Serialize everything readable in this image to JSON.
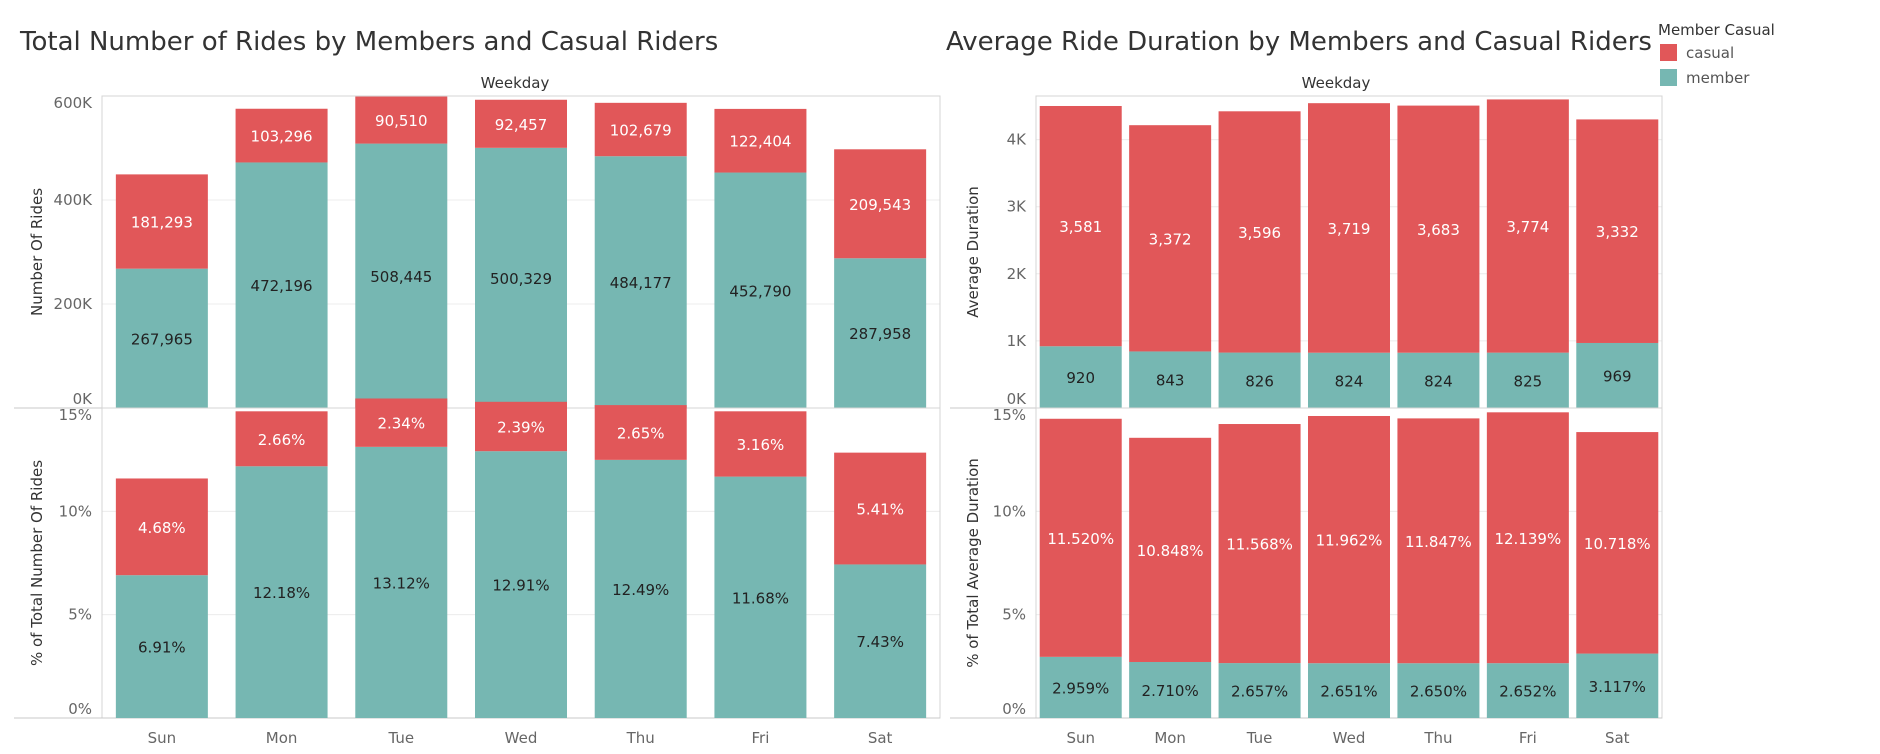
{
  "legend": {
    "title": "Member Casual",
    "items": [
      {
        "label": "casual",
        "color": "#e15759"
      },
      {
        "label": "member",
        "color": "#76b7b2"
      }
    ]
  },
  "chart_data": [
    {
      "id": "rides-count",
      "type": "bar",
      "stacked": true,
      "title": "Total Number of Rides by Members and Casual Riders",
      "header": "Weekday",
      "ylabel": "Number Of Rides",
      "ylim": [
        0,
        600000
      ],
      "yticks": [
        0,
        200000,
        400000,
        600000
      ],
      "ytick_labels": [
        "0K",
        "200K",
        "400K",
        "600K"
      ],
      "categories": [
        "Sun",
        "Mon",
        "Tue",
        "Wed",
        "Thu",
        "Fri",
        "Sat"
      ],
      "series": [
        {
          "name": "member",
          "values": [
            267965,
            472196,
            508445,
            500329,
            484177,
            452790,
            287958
          ],
          "labels": [
            "267,965",
            "472,196",
            "508,445",
            "500,329",
            "484,177",
            "452,790",
            "287,958"
          ]
        },
        {
          "name": "casual",
          "values": [
            181293,
            103296,
            90510,
            92457,
            102679,
            122404,
            209543
          ],
          "labels": [
            "181,293",
            "103,296",
            "90,510",
            "92,457",
            "102,679",
            "122,404",
            "209,543"
          ]
        }
      ]
    },
    {
      "id": "rides-pct",
      "type": "bar",
      "stacked": true,
      "ylabel": "% of Total Number Of Rides",
      "ylim": [
        0,
        15
      ],
      "yticks": [
        0,
        5,
        10,
        15
      ],
      "ytick_labels": [
        "0%",
        "5%",
        "10%",
        "15%"
      ],
      "categories": [
        "Sun",
        "Mon",
        "Tue",
        "Wed",
        "Thu",
        "Fri",
        "Sat"
      ],
      "series": [
        {
          "name": "member",
          "values": [
            6.91,
            12.18,
            13.12,
            12.91,
            12.49,
            11.68,
            7.43
          ],
          "labels": [
            "6.91%",
            "12.18%",
            "13.12%",
            "12.91%",
            "12.49%",
            "11.68%",
            "7.43%"
          ]
        },
        {
          "name": "casual",
          "values": [
            4.68,
            2.66,
            2.34,
            2.39,
            2.65,
            3.16,
            5.41
          ],
          "labels": [
            "4.68%",
            "2.66%",
            "2.34%",
            "2.39%",
            "2.65%",
            "3.16%",
            "5.41%"
          ]
        }
      ]
    },
    {
      "id": "duration-avg",
      "type": "bar",
      "stacked": true,
      "title": "Average Ride Duration by Members and Casual Riders",
      "header": "Weekday",
      "ylabel": "Average Duration",
      "ylim": [
        0,
        4650
      ],
      "yticks": [
        0,
        1000,
        2000,
        3000,
        4000
      ],
      "ytick_labels": [
        "0K",
        "1K",
        "2K",
        "3K",
        "4K"
      ],
      "categories": [
        "Sun",
        "Mon",
        "Tue",
        "Wed",
        "Thu",
        "Fri",
        "Sat"
      ],
      "series": [
        {
          "name": "member",
          "values": [
            920,
            843,
            826,
            824,
            824,
            825,
            969
          ],
          "labels": [
            "920",
            "843",
            "826",
            "824",
            "824",
            "825",
            "969"
          ]
        },
        {
          "name": "casual",
          "values": [
            3581,
            3372,
            3596,
            3719,
            3683,
            3774,
            3332
          ],
          "labels": [
            "3,581",
            "3,372",
            "3,596",
            "3,719",
            "3,683",
            "3,774",
            "3,332"
          ]
        }
      ]
    },
    {
      "id": "duration-pct",
      "type": "bar",
      "stacked": true,
      "ylabel": "% of Total Average Duration",
      "ylim": [
        0,
        15
      ],
      "yticks": [
        0,
        5,
        10,
        15
      ],
      "ytick_labels": [
        "0%",
        "5%",
        "10%",
        "15%"
      ],
      "categories": [
        "Sun",
        "Mon",
        "Tue",
        "Wed",
        "Thu",
        "Fri",
        "Sat"
      ],
      "series": [
        {
          "name": "member",
          "values": [
            2.959,
            2.71,
            2.657,
            2.651,
            2.65,
            2.652,
            3.117
          ],
          "labels": [
            "2.959%",
            "2.710%",
            "2.657%",
            "2.651%",
            "2.650%",
            "2.652%",
            "3.117%"
          ]
        },
        {
          "name": "casual",
          "values": [
            11.52,
            10.848,
            11.568,
            11.962,
            11.847,
            12.139,
            10.718
          ],
          "labels": [
            "11.520%",
            "10.848%",
            "11.568%",
            "11.962%",
            "11.847%",
            "12.139%",
            "10.718%"
          ]
        }
      ]
    }
  ]
}
